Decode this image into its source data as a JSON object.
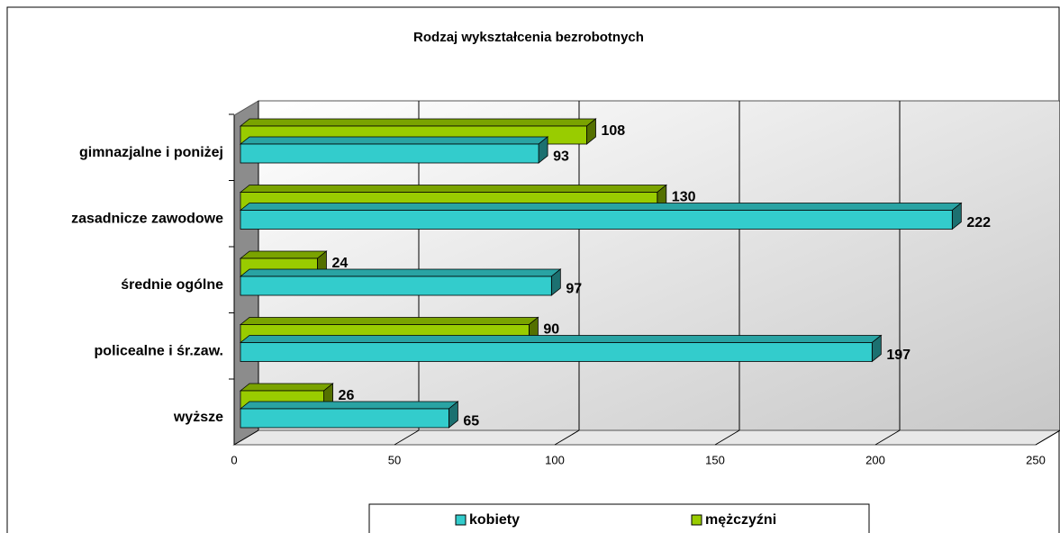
{
  "chart_data": {
    "type": "bar",
    "orientation": "horizontal",
    "title": "Rodzaj wykształcenia bezrobotnych",
    "categories": [
      "gimnazjalne i poniżej",
      "zasadnicze zawodowe",
      "średnie ogólne",
      "policealne i śr.zaw.",
      "wyższe"
    ],
    "series": [
      {
        "name": "kobiety",
        "color": "#33cccc",
        "values": [
          93,
          222,
          97,
          197,
          65
        ]
      },
      {
        "name": "mężczyźni",
        "color": "#99cc00",
        "values": [
          108,
          130,
          24,
          90,
          26
        ]
      }
    ],
    "xlim": [
      0,
      250
    ],
    "xticks": [
      0,
      50,
      100,
      150,
      200,
      250
    ],
    "grid": true,
    "legend": "bottom"
  }
}
